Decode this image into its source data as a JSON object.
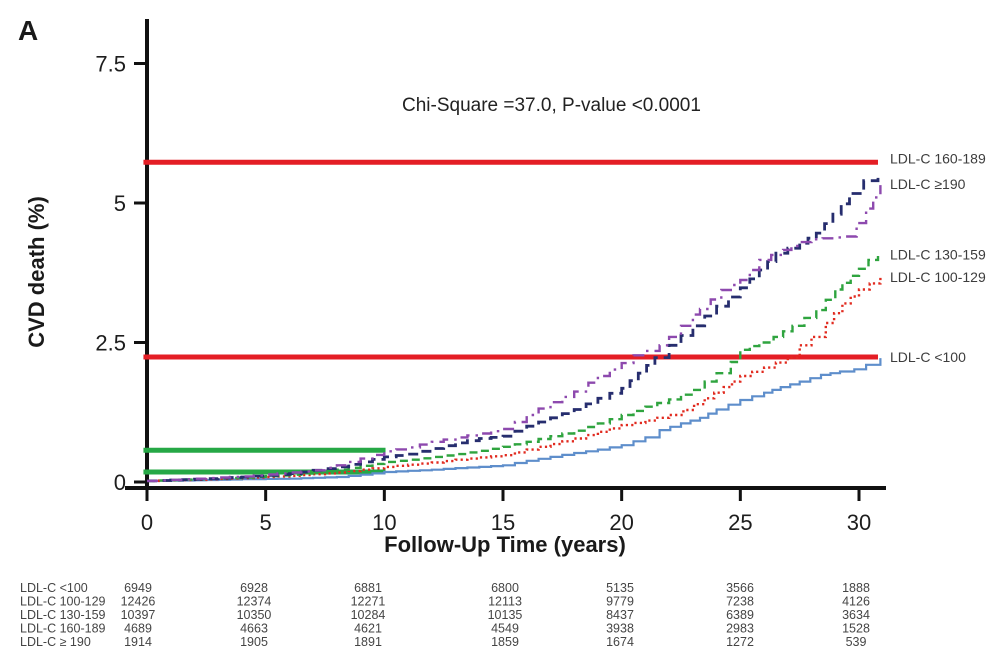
{
  "panel_label": "A",
  "chart_data": {
    "type": "line",
    "subtype": "cumulative-incidence-stepped",
    "annotation": "Chi-Square =37.0, P-value <0.0001",
    "xlabel": "Follow-Up Time (years)",
    "ylabel": "CVD death (%)",
    "xlim": [
      0,
      31
    ],
    "ylim": [
      0,
      7.9
    ],
    "x_ticks": [
      0,
      5,
      10,
      15,
      20,
      25,
      30
    ],
    "y_ticks": [
      0,
      2.5,
      5,
      7.5
    ],
    "y_tick_labels": [
      "0",
      "2.5",
      "5",
      "7.5"
    ],
    "grid": false,
    "legend_position": "right-outside",
    "series": [
      {
        "name": "ldlc-lt100",
        "label": "LDL-C  <100",
        "color": "#5e8ecb",
        "dash": "solid",
        "width": 2.2,
        "points": [
          [
            0,
            0.02
          ],
          [
            2,
            0.03
          ],
          [
            4,
            0.05
          ],
          [
            6,
            0.06
          ],
          [
            8,
            0.09
          ],
          [
            9,
            0.13
          ],
          [
            10,
            0.18
          ],
          [
            11,
            0.2
          ],
          [
            12,
            0.22
          ],
          [
            13,
            0.25
          ],
          [
            14,
            0.27
          ],
          [
            15,
            0.3
          ],
          [
            16,
            0.38
          ],
          [
            17,
            0.45
          ],
          [
            18,
            0.52
          ],
          [
            19,
            0.58
          ],
          [
            20,
            0.66
          ],
          [
            21,
            0.8
          ],
          [
            21.6,
            0.93
          ],
          [
            22.5,
            1.05
          ],
          [
            23.3,
            1.15
          ],
          [
            24,
            1.3
          ],
          [
            25,
            1.47
          ],
          [
            26,
            1.6
          ],
          [
            26.7,
            1.7
          ],
          [
            27.5,
            1.8
          ],
          [
            28.4,
            1.92
          ],
          [
            29.2,
            1.98
          ],
          [
            29.8,
            2.02
          ],
          [
            30.3,
            2.1
          ],
          [
            30.9,
            2.22
          ]
        ]
      },
      {
        "name": "ldlc-100-129",
        "label": "LDL-C  100-129",
        "color": "#e12a1f",
        "dash": "dotted",
        "width": 2.4,
        "points": [
          [
            0,
            0.02
          ],
          [
            2,
            0.04
          ],
          [
            4,
            0.07
          ],
          [
            6,
            0.11
          ],
          [
            8,
            0.17
          ],
          [
            9,
            0.22
          ],
          [
            10,
            0.27
          ],
          [
            11,
            0.31
          ],
          [
            12,
            0.35
          ],
          [
            13,
            0.4
          ],
          [
            14,
            0.44
          ],
          [
            15,
            0.48
          ],
          [
            16,
            0.58
          ],
          [
            17,
            0.68
          ],
          [
            18,
            0.78
          ],
          [
            19,
            0.9
          ],
          [
            20,
            1.02
          ],
          [
            21,
            1.1
          ],
          [
            22,
            1.2
          ],
          [
            22.6,
            1.29
          ],
          [
            23.5,
            1.5
          ],
          [
            24.3,
            1.7
          ],
          [
            25,
            1.9
          ],
          [
            26,
            2.05
          ],
          [
            27,
            2.23
          ],
          [
            27.5,
            2.45
          ],
          [
            28,
            2.6
          ],
          [
            28.6,
            2.85
          ],
          [
            29.3,
            3.2
          ],
          [
            30,
            3.45
          ],
          [
            30.9,
            3.67
          ]
        ]
      },
      {
        "name": "ldlc-130-159",
        "label": "LDL-C  130-159",
        "color": "#2fa43f",
        "dash": "dashed",
        "width": 2.4,
        "points": [
          [
            0,
            0.02
          ],
          [
            2,
            0.05
          ],
          [
            4,
            0.08
          ],
          [
            6,
            0.13
          ],
          [
            8,
            0.22
          ],
          [
            9,
            0.29
          ],
          [
            10,
            0.36
          ],
          [
            11,
            0.4
          ],
          [
            12,
            0.45
          ],
          [
            13,
            0.5
          ],
          [
            14,
            0.56
          ],
          [
            15,
            0.63
          ],
          [
            16,
            0.72
          ],
          [
            17,
            0.82
          ],
          [
            18,
            0.92
          ],
          [
            19,
            1.05
          ],
          [
            20,
            1.2
          ],
          [
            21,
            1.35
          ],
          [
            22,
            1.48
          ],
          [
            23,
            1.65
          ],
          [
            24,
            1.95
          ],
          [
            24.6,
            2.15
          ],
          [
            25,
            2.37
          ],
          [
            25.8,
            2.5
          ],
          [
            26.4,
            2.6
          ],
          [
            27.2,
            2.8
          ],
          [
            28.2,
            3.08
          ],
          [
            29,
            3.45
          ],
          [
            29.3,
            3.57
          ],
          [
            30,
            3.82
          ],
          [
            30.4,
            3.98
          ],
          [
            30.8,
            4.05
          ]
        ]
      },
      {
        "name": "ldlc-160-189",
        "label": "LDL-C  160-189",
        "color": "#262d6e",
        "dash": "longdash",
        "width": 2.8,
        "points": [
          [
            0,
            0.02
          ],
          [
            2,
            0.05
          ],
          [
            4,
            0.09
          ],
          [
            6,
            0.15
          ],
          [
            8,
            0.27
          ],
          [
            9,
            0.36
          ],
          [
            10,
            0.45
          ],
          [
            11,
            0.5
          ],
          [
            12,
            0.6
          ],
          [
            13,
            0.7
          ],
          [
            14,
            0.78
          ],
          [
            15,
            0.82
          ],
          [
            16,
            1.0
          ],
          [
            17,
            1.15
          ],
          [
            18,
            1.3
          ],
          [
            19,
            1.5
          ],
          [
            20,
            1.68
          ],
          [
            20.7,
            1.95
          ],
          [
            21.4,
            2.23
          ],
          [
            22,
            2.45
          ],
          [
            23,
            2.8
          ],
          [
            24,
            3.15
          ],
          [
            25,
            3.48
          ],
          [
            25.8,
            3.8
          ],
          [
            26.5,
            4.1
          ],
          [
            27.5,
            4.28
          ],
          [
            28.2,
            4.46
          ],
          [
            28.9,
            4.8
          ],
          [
            29.6,
            5.17
          ],
          [
            30.2,
            5.4
          ],
          [
            30.8,
            5.55
          ]
        ]
      },
      {
        "name": "ldlc-ge190",
        "label": "LDL-C  ≥190",
        "color": "#8d49ae",
        "dash": "dashdot",
        "width": 2.4,
        "points": [
          [
            0,
            0.02
          ],
          [
            2,
            0.06
          ],
          [
            4,
            0.1
          ],
          [
            6,
            0.17
          ],
          [
            7,
            0.21
          ],
          [
            8,
            0.3
          ],
          [
            9,
            0.42
          ],
          [
            10,
            0.55
          ],
          [
            11,
            0.62
          ],
          [
            12,
            0.72
          ],
          [
            13,
            0.8
          ],
          [
            14,
            0.87
          ],
          [
            15,
            0.95
          ],
          [
            16,
            1.2
          ],
          [
            17,
            1.43
          ],
          [
            18,
            1.62
          ],
          [
            18.6,
            1.78
          ],
          [
            19,
            1.9
          ],
          [
            20,
            2.13
          ],
          [
            20.5,
            2.27
          ],
          [
            21,
            2.35
          ],
          [
            21.6,
            2.45
          ],
          [
            22,
            2.6
          ],
          [
            22.5,
            2.8
          ],
          [
            23,
            3.0
          ],
          [
            23.3,
            3.1
          ],
          [
            24.2,
            3.44
          ],
          [
            25,
            3.62
          ],
          [
            25.8,
            3.98
          ],
          [
            26.8,
            4.16
          ],
          [
            27.5,
            4.3
          ],
          [
            28,
            4.35
          ],
          [
            29.4,
            4.4
          ],
          [
            29.9,
            4.64
          ],
          [
            30.3,
            4.9
          ],
          [
            30.6,
            5.1
          ],
          [
            30.9,
            5.32
          ]
        ]
      }
    ],
    "reference_lines": [
      {
        "name": "red-upper",
        "value": 5.73,
        "x_from": -0.15,
        "x_to": 30.8,
        "color": "#e41e25",
        "width": 5
      },
      {
        "name": "red-lower",
        "value": 2.24,
        "x_from": -0.15,
        "x_to": 30.8,
        "color": "#e41e25",
        "width": 5
      },
      {
        "name": "green-upper",
        "value": 0.57,
        "x_from": -0.15,
        "x_to": 10.05,
        "color": "#26a846",
        "width": 5
      },
      {
        "name": "green-lower",
        "value": 0.18,
        "x_from": -0.15,
        "x_to": 10.05,
        "color": "#26a846",
        "width": 5
      }
    ],
    "right_labels": [
      {
        "text": "LDL-C  160-189",
        "at": 5.8
      },
      {
        "text": "LDL-C  ≥190",
        "at": 5.34
      },
      {
        "text": "LDL-C  130-159",
        "at": 4.08
      },
      {
        "text": "LDL-C  100-129",
        "at": 3.67
      },
      {
        "text": "LDL-C  <100",
        "at": 2.24
      }
    ],
    "risk_table": {
      "times": [
        0,
        5,
        10,
        15,
        20,
        25,
        30
      ],
      "rows": [
        {
          "label": "LDL-C <100",
          "counts": [
            6949,
            6928,
            6881,
            6800,
            5135,
            3566,
            1888
          ]
        },
        {
          "label": "LDL-C 100-129",
          "counts": [
            12426,
            12374,
            12271,
            12113,
            9779,
            7238,
            4126
          ]
        },
        {
          "label": "LDL-C 130-159",
          "counts": [
            10397,
            10350,
            10284,
            10135,
            8437,
            6389,
            3634
          ]
        },
        {
          "label": "LDL-C 160-189",
          "counts": [
            4689,
            4663,
            4621,
            4549,
            3938,
            2983,
            1528
          ]
        },
        {
          "label": "LDL-C ≥ 190",
          "counts": [
            1914,
            1905,
            1891,
            1859,
            1674,
            1272,
            539
          ]
        }
      ]
    }
  }
}
